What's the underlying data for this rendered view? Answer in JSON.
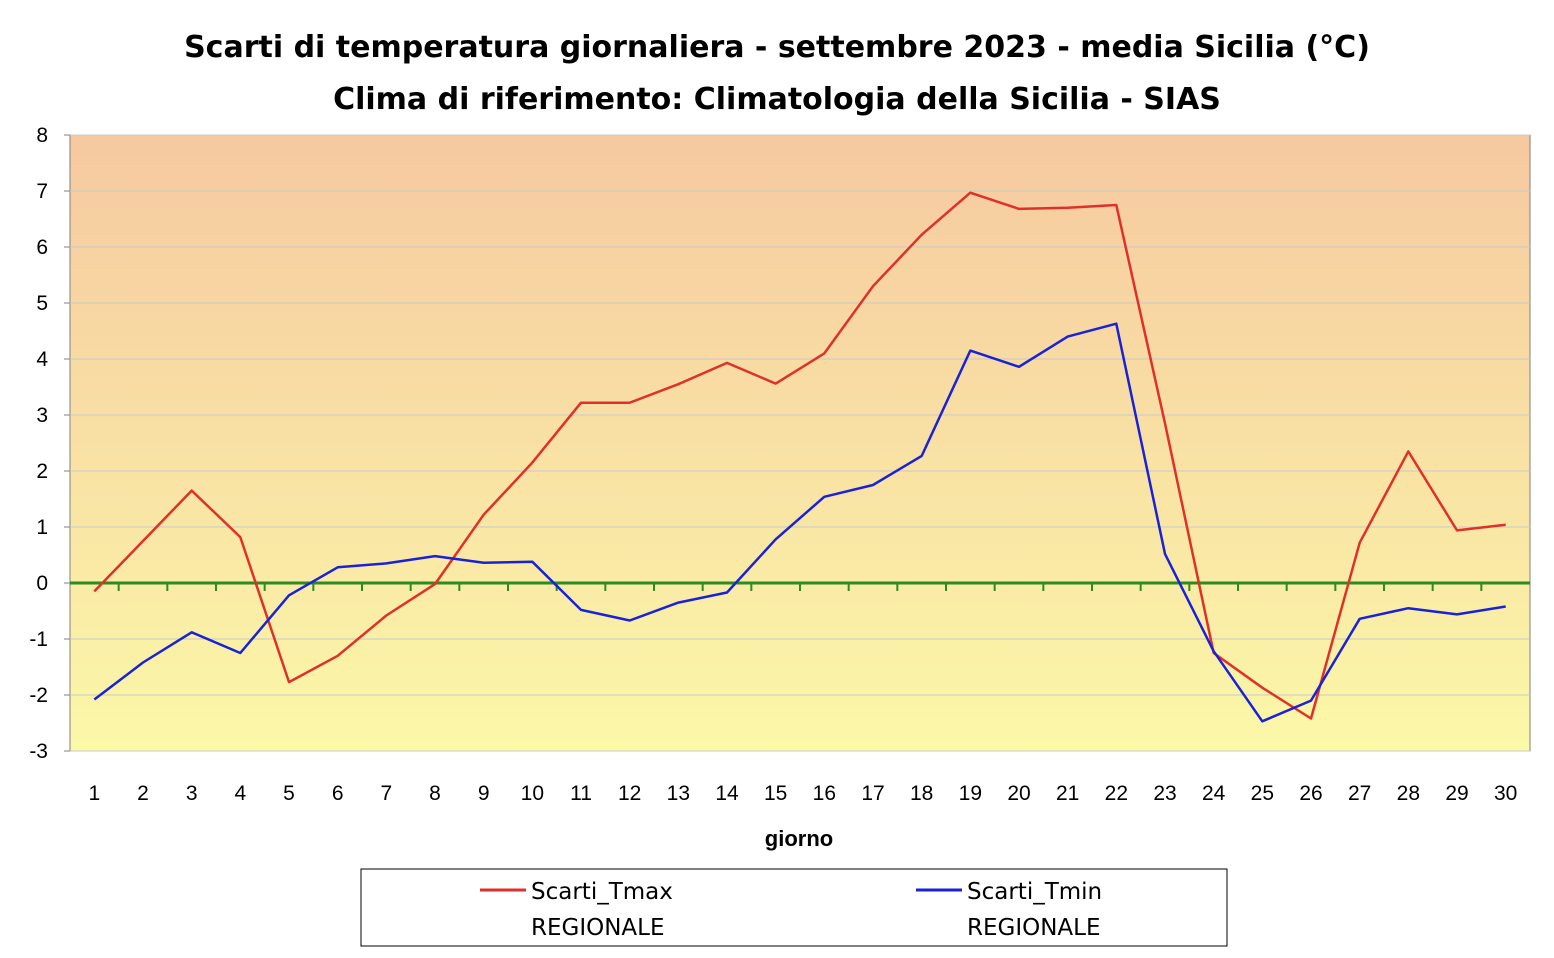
{
  "chart_data": {
    "type": "line",
    "title": "Scarti di temperatura giornaliera - settembre 2023 - media Sicilia (°C)",
    "subtitle": "Clima di riferimento: Climatologia della Sicilia - SIAS",
    "xlabel": "giorno",
    "ylabel": "",
    "ylim": [
      -3,
      8
    ],
    "yticks": [
      8,
      7,
      6,
      5,
      4,
      3,
      2,
      1,
      0,
      -1,
      -2,
      -3
    ],
    "categories": [
      "1",
      "2",
      "3",
      "4",
      "5",
      "6",
      "7",
      "8",
      "9",
      "10",
      "11",
      "12",
      "13",
      "14",
      "15",
      "16",
      "17",
      "18",
      "19",
      "20",
      "21",
      "22",
      "23",
      "24",
      "25",
      "26",
      "27",
      "28",
      "29",
      "30"
    ],
    "grid": true,
    "zero_line_color": "#2e8b1e",
    "background_gradient": [
      "#f6c9a0",
      "#fbf8a8"
    ],
    "legend_position": "bottom",
    "series": [
      {
        "name_line1": "Scarti_Tmax",
        "name_line2": "REGIONALE",
        "color": "#e0302a",
        "values": [
          -0.15,
          0.75,
          1.65,
          0.82,
          -1.77,
          -1.3,
          -0.58,
          -0.02,
          1.22,
          2.15,
          3.22,
          3.22,
          3.55,
          3.93,
          3.56,
          4.1,
          5.3,
          6.22,
          6.97,
          6.68,
          6.7,
          6.75,
          2.85,
          -1.25,
          -1.87,
          -2.42,
          0.72,
          2.35,
          0.94,
          1.04
        ]
      },
      {
        "name_line1": "Scarti_Tmin",
        "name_line2": "REGIONALE",
        "color": "#1a22d8",
        "values": [
          -2.08,
          -1.42,
          -0.88,
          -1.25,
          -0.22,
          0.28,
          0.35,
          0.48,
          0.36,
          0.38,
          -0.48,
          -0.67,
          -0.35,
          -0.17,
          0.78,
          1.54,
          1.75,
          2.27,
          4.15,
          3.86,
          4.4,
          4.63,
          0.52,
          -1.22,
          -2.47,
          -2.1,
          -0.64,
          -0.45,
          -0.56,
          -0.42
        ]
      }
    ]
  }
}
